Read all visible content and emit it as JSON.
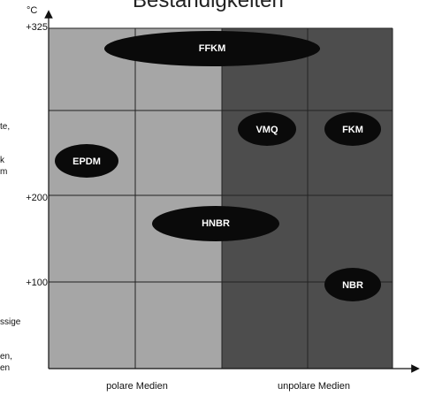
{
  "diagram": {
    "title": "Beständigkeiten",
    "unit": "°C",
    "y_ticks": [
      "+325",
      "+200",
      "+100"
    ],
    "x_labels": [
      "polare Medien",
      "unpolare Medien"
    ],
    "side_text": [
      "te,",
      "k",
      "m",
      "ssige",
      "en,",
      "en"
    ],
    "materials": [
      "FFKM",
      "VMQ",
      "FKM",
      "EPDM",
      "HNBR",
      "NBR"
    ],
    "colors": {
      "polar_region": "#a6a6a6",
      "unpolar_region": "#4d4d4d",
      "ellipse": "#0a0a0a",
      "grid": "#222222"
    }
  }
}
